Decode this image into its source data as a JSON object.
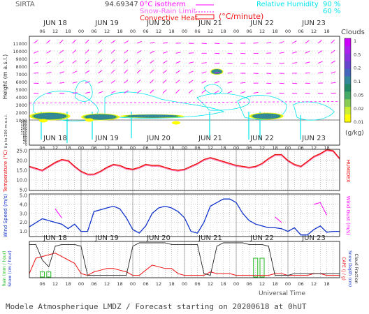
{
  "header": {
    "site": "SIRTA",
    "coords": "94.69347",
    "isotherm_label": "0°C isotherm",
    "snow_rain_label": "Snow-Rain Limit",
    "convective_label": "Convective Heat.",
    "convective_unit": "(°C/minute)",
    "rh_label": "Relative Humidity",
    "rh_90": "90 %",
    "rh_60": "60 %",
    "clouds_title": "Clouds",
    "clouds_unit": "(g/kg)"
  },
  "footer": {
    "universal_time": "Universal Time",
    "caption": "Modele Atmospherique LMDZ / Forecast starting on 20200618 at 0hUT"
  },
  "colors": {
    "pink": "#ff00ff",
    "magenta_text": "#ff00ff",
    "cyan": "#00e5ee",
    "red": "#ee1111",
    "blue": "#1133cc",
    "green": "#22bb22",
    "dark_red": "#aa0000",
    "cloud_scale": [
      "#ffff00",
      "#ccee33",
      "#88cc55",
      "#44aa66",
      "#228866",
      "#338899",
      "#4466bb",
      "#6644cc",
      "#8833dd",
      "#aa22ee",
      "#cc00ff"
    ]
  },
  "chart_data": [
    {
      "type": "heatmap",
      "name": "clouds",
      "ylabel": "Height (m a.s.l.)",
      "ylabel2": "Up to 200 m a.s.l.",
      "y_ticks_upper": [
        "11000",
        "10000",
        "9000",
        "8000",
        "7000",
        "6000",
        "5000",
        "4000",
        "3000",
        "2000",
        "1000"
      ],
      "y_ticks_lower": [
        "200",
        "180",
        "160",
        "140",
        "120",
        "100",
        "80",
        "60",
        "40",
        "20",
        "0"
      ],
      "days": [
        "JUN 18",
        "JUN 19",
        "JUN 20",
        "JUN 21",
        "JUN 22",
        "JUN 23"
      ],
      "hours": [
        "06",
        "12",
        "18",
        "00"
      ],
      "cloud_levels": [
        "1",
        "0.5",
        "0.2",
        "0.1",
        "0.05",
        "0.02",
        "0.01"
      ],
      "cloud_layers": [
        {
          "t0": 0,
          "t1": 19,
          "z": 1500,
          "dz": 1000,
          "intensity": 0.9
        },
        {
          "t0": 24,
          "t1": 42,
          "z": 1400,
          "dz": 900,
          "intensity": 0.8
        },
        {
          "t0": 42,
          "t1": 72,
          "z": 1500,
          "dz": 500,
          "intensity": 0.6
        },
        {
          "t0": 84,
          "t1": 90,
          "z": 7300,
          "dz": 900,
          "intensity": 0.7
        },
        {
          "t0": 102,
          "t1": 118,
          "z": 1500,
          "dz": 900,
          "intensity": 0.8
        }
      ]
    },
    {
      "type": "line",
      "name": "temperature",
      "ylabel": "Temperature (°C)",
      "ylabel2": "HUMIDEX",
      "y_ticks": [
        "25.0",
        "20.0",
        "15.0",
        "10.0",
        "5.0"
      ],
      "ylim": [
        5,
        25
      ],
      "x": [
        0,
        6,
        9,
        12,
        15,
        18,
        21,
        24,
        27,
        30,
        33,
        36,
        39,
        42,
        45,
        48,
        51,
        54,
        57,
        60,
        63,
        66,
        69,
        72,
        75,
        78,
        81,
        84,
        87,
        90,
        93,
        96,
        99,
        102,
        105,
        108,
        111,
        114,
        117,
        120,
        123,
        126,
        129,
        132,
        135,
        138,
        141,
        144
      ],
      "temperature": [
        17,
        15,
        17,
        19,
        20.5,
        20,
        17,
        14.5,
        13,
        13,
        14.5,
        16.5,
        18,
        17.5,
        16,
        15.5,
        16.5,
        18,
        17.5,
        17.5,
        16.5,
        15.5,
        15,
        15.5,
        17,
        18.5,
        20.5,
        21.5,
        20.5,
        19.5,
        18.5,
        17.5,
        17,
        16.5,
        17,
        18.5,
        21,
        23,
        23,
        20,
        18,
        17,
        19.5,
        22,
        23.5,
        25.5,
        25,
        21
      ],
      "humidex": [
        16.5,
        14.5,
        16.5,
        18.5,
        20,
        19.5,
        16.5,
        14,
        12.5,
        12.5,
        14,
        16,
        17.5,
        17,
        15.5,
        15,
        16,
        17.5,
        17,
        17,
        16,
        15,
        14.5,
        15,
        16.5,
        18,
        20,
        21,
        20,
        19,
        18,
        17,
        16.5,
        16,
        16.5,
        18,
        20.5,
        22.5,
        22.5,
        19.5,
        17.5,
        16.5,
        19,
        21.5,
        23,
        25,
        24.5,
        20.5
      ]
    },
    {
      "type": "line",
      "name": "wind",
      "ylabel": "Wind Speed (m/s)",
      "ylabel2": "Wind Gust (m/s)",
      "y_ticks": [
        "5.0",
        "4.0",
        "3.0",
        "2.0",
        "1.0"
      ],
      "ylim": [
        0.5,
        5
      ],
      "x": [
        0,
        6,
        9,
        12,
        15,
        18,
        21,
        24,
        27,
        30,
        33,
        36,
        39,
        42,
        45,
        48,
        51,
        54,
        57,
        60,
        63,
        66,
        69,
        72,
        75,
        78,
        81,
        84,
        87,
        90,
        93,
        96,
        99,
        102,
        105,
        108,
        111,
        114,
        117,
        120,
        123,
        126,
        129,
        132,
        135,
        138,
        141,
        144
      ],
      "wind_speed": [
        1.5,
        2.4,
        2.2,
        2,
        1.8,
        1.3,
        1.8,
        1,
        1,
        3.2,
        3.4,
        3.6,
        3.8,
        3.5,
        2.5,
        1.2,
        0.8,
        1.6,
        3,
        3.6,
        3.8,
        3.6,
        3.2,
        2.5,
        1,
        0.8,
        2,
        3.8,
        4.2,
        4.6,
        4.6,
        4.2,
        3,
        2.2,
        1.8,
        1.6,
        1.4,
        1.4,
        1.3,
        1,
        1.4,
        0.6,
        0.6,
        1.2,
        1.6,
        0.9,
        1,
        1
      ],
      "wind_gust": [
        null,
        null,
        null,
        3.5,
        2.5,
        null,
        null,
        null,
        null,
        null,
        null,
        null,
        null,
        null,
        null,
        null,
        null,
        null,
        null,
        null,
        null,
        null,
        null,
        null,
        null,
        null,
        null,
        null,
        null,
        null,
        null,
        null,
        null,
        null,
        null,
        null,
        null,
        2.6,
        2,
        null,
        null,
        null,
        null,
        4,
        4.2,
        2.8,
        null,
        null
      ]
    },
    {
      "type": "line",
      "name": "precip",
      "ylabel": "Rain (mm / hour)",
      "ylabel2": "Snow (cm / hour)",
      "ylabel3": "CAPE (J / g)",
      "ylabel4": "Snow Depth (cm)",
      "ylabel5": "Cloud Fraction",
      "x": [
        0,
        3,
        6,
        9,
        12,
        15,
        18,
        21,
        24,
        27,
        30,
        33,
        36,
        39,
        42,
        45,
        48,
        51,
        54,
        57,
        60,
        63,
        66,
        69,
        72,
        75,
        78,
        81,
        84,
        87,
        90,
        93,
        96,
        99,
        102,
        105,
        108,
        111,
        114,
        117,
        120,
        123,
        126,
        129,
        132,
        135,
        138,
        141,
        144
      ],
      "rain": [
        0,
        0,
        0.15,
        0.15,
        0,
        0,
        0,
        0,
        0,
        0,
        0,
        0,
        0,
        0,
        0,
        0,
        0,
        0,
        0,
        0,
        0,
        0,
        0,
        0,
        0,
        0,
        0,
        0,
        0,
        0,
        0,
        0,
        0,
        0,
        0,
        0.55,
        0.55,
        0,
        0,
        0,
        0,
        0,
        0,
        0,
        0,
        0,
        0,
        0,
        0
      ],
      "cape": [
        0.1,
        0.55,
        0.6,
        0.65,
        0.7,
        0.6,
        0.5,
        0.4,
        0.1,
        0.05,
        0.15,
        0.2,
        0.25,
        0.25,
        0.2,
        0.15,
        0.05,
        0.05,
        0.2,
        0.35,
        0.3,
        0.25,
        0.25,
        0.1,
        0.05,
        0.05,
        0.05,
        0.05,
        0.15,
        0.1,
        0.1,
        0.1,
        0.05,
        0.05,
        0.05,
        0.05,
        0.05,
        0.05,
        0.1,
        0.1,
        0.05,
        0.05,
        0.05,
        0.05,
        0.1,
        0.1,
        0.05,
        0.05,
        0.05
      ],
      "cloud_fraction": [
        0.95,
        0.95,
        0.5,
        0.3,
        0.9,
        0.95,
        0.95,
        0.95,
        0.9,
        0.05,
        0.05,
        0.05,
        0.05,
        0.05,
        0.05,
        0.05,
        0.9,
        1,
        1,
        1,
        1,
        1,
        0.95,
        0.95,
        0.95,
        0.95,
        0.95,
        0.1,
        0.05,
        0.9,
        1,
        1,
        1,
        1,
        0.95,
        0.95,
        0.95,
        0.9,
        0.05,
        0.05,
        0.05,
        0.1,
        0.1,
        0.1,
        0.1,
        0.1,
        0.1,
        0.1,
        0.1
      ]
    }
  ]
}
